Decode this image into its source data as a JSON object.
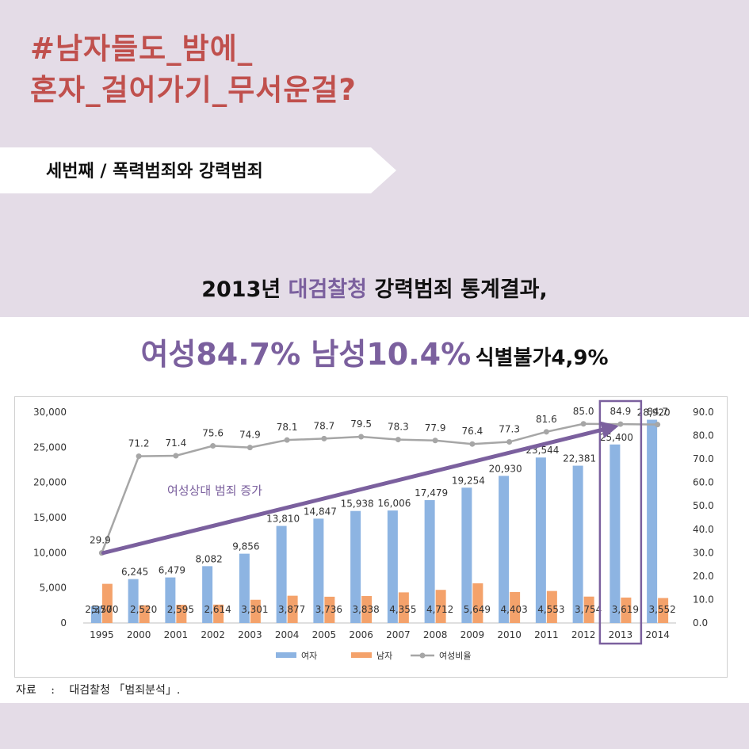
{
  "header": {
    "title_line1": "#남자들도_밤에_",
    "title_line2": "혼자_걸어가기_무서운걸?",
    "subtitle": "세번째 / 폭력범죄와 강력범죄"
  },
  "headline": {
    "line1_prefix": "2013년 ",
    "line1_accent": "대검찰청",
    "line1_suffix": " 강력범죄 통계결과,",
    "female_stat": "여성84.7% 남성10.4%",
    "unknown_stat": "식별불가4,9%"
  },
  "colors": {
    "title": "#c0504d",
    "accent": "#7b609e",
    "female_bar": "#8db4e2",
    "male_bar": "#f4a26b",
    "ratio_line": "#a6a6a6",
    "arrow": "#7b609e"
  },
  "chart_data": {
    "type": "bar",
    "categories": [
      "1995",
      "2000",
      "2001",
      "2002",
      "2003",
      "2004",
      "2005",
      "2006",
      "2007",
      "2008",
      "2009",
      "2010",
      "2011",
      "2012",
      "2013",
      "2014"
    ],
    "series": [
      {
        "name": "여자",
        "axis": "left",
        "values": [
          2370,
          6245,
          6479,
          8082,
          9856,
          13810,
          14847,
          15938,
          16006,
          17479,
          19254,
          20930,
          23544,
          22381,
          25400,
          28920
        ],
        "labels": [
          "2,370",
          "6,245",
          "6,479",
          "8,082",
          "9,856",
          "13,810",
          "14,847",
          "15,938",
          "16,006",
          "17,479",
          "19,254",
          "20,930",
          "23,544",
          "22,381",
          "25,400",
          "28,920"
        ]
      },
      {
        "name": "남자",
        "axis": "left",
        "values": [
          5570,
          2520,
          2595,
          2614,
          3301,
          3877,
          3736,
          3838,
          4355,
          4712,
          5649,
          4403,
          4553,
          3754,
          3619,
          3552
        ],
        "labels": [
          "5,570",
          "2,520",
          "2,595",
          "2,614",
          "3,301",
          "3,877",
          "3,736",
          "3,838",
          "4,355",
          "4,712",
          "5,649",
          "4,403",
          "4,553",
          "3,754",
          "3,619",
          "3,552"
        ]
      },
      {
        "name": "여성비율",
        "type": "line",
        "axis": "right",
        "values": [
          29.9,
          71.2,
          71.4,
          75.6,
          74.9,
          78.1,
          78.7,
          79.5,
          78.3,
          77.9,
          76.4,
          77.3,
          81.6,
          85.0,
          84.9,
          84.7
        ],
        "labels": [
          "29.9",
          "71.2",
          "71.4",
          "75.6",
          "74.9",
          "78.1",
          "78.7",
          "79.5",
          "78.3",
          "77.9",
          "76.4",
          "77.3",
          "81.6",
          "85.0",
          "84.9",
          "84.7"
        ]
      }
    ],
    "y_left": {
      "ylim": [
        0,
        30000
      ],
      "ticks": [
        "0",
        "5,000",
        "10,000",
        "15,000",
        "20,000",
        "25,000",
        "30,000"
      ]
    },
    "y_right": {
      "ylim": [
        0,
        90
      ],
      "ticks": [
        "0.0",
        "10.0",
        "20.0",
        "30.0",
        "40.0",
        "50.0",
        "60.0",
        "70.0",
        "80.0",
        "90.0"
      ]
    },
    "legend_position": "bottom",
    "annotation": "여성상대 범죄 증가",
    "highlight_category": "2013"
  },
  "source": {
    "label": "자료",
    "sep": ":",
    "text": "대검찰청 「범죄분석」."
  }
}
